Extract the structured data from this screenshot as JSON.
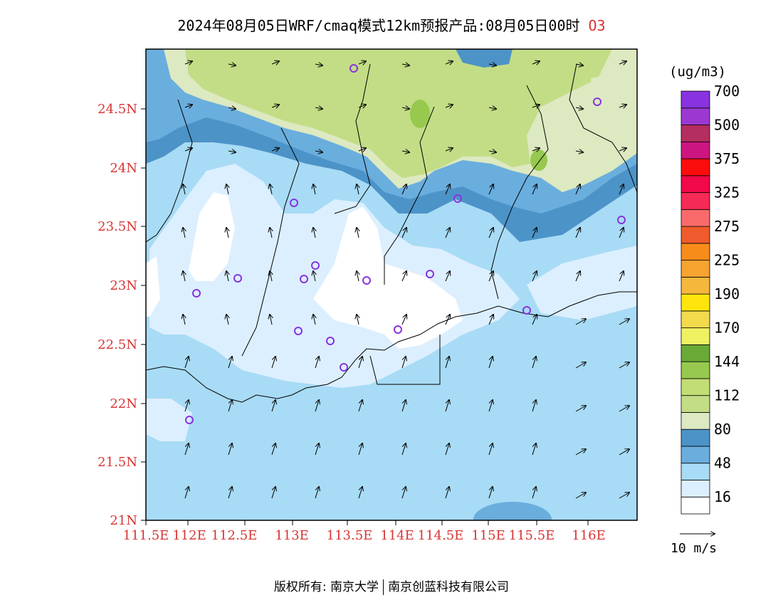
{
  "title": {
    "main": "2024年08月05日WRF/cmaq模式12km预报产品:08月05日00时",
    "pollutant": "O3"
  },
  "axes": {
    "lat_labels": [
      "24.5N",
      "24N",
      "23.5N",
      "23N",
      "22.5N",
      "22N",
      "21.5N",
      "21N"
    ],
    "lon_labels": [
      "111.5E",
      "112E",
      "112.5E",
      "113E",
      "113.5E",
      "114E",
      "114.5E",
      "115E",
      "115.5E",
      "116E"
    ]
  },
  "colorbar": {
    "unit": "(ug/m3)",
    "levels": [
      {
        "color": "#ffffff",
        "label": "16"
      },
      {
        "color": "#dcefff",
        "label": ""
      },
      {
        "color": "#a8dbf5",
        "label": "48"
      },
      {
        "color": "#6aaede",
        "label": ""
      },
      {
        "color": "#4c93c8",
        "label": "80"
      },
      {
        "color": "#dde9c1",
        "label": ""
      },
      {
        "color": "#c3dd86",
        "label": "112"
      },
      {
        "color": "#c3dd75",
        "label": ""
      },
      {
        "color": "#97c94f",
        "label": "144"
      },
      {
        "color": "#6aaa37",
        "label": ""
      },
      {
        "color": "#f0f063",
        "label": "170"
      },
      {
        "color": "#f3da4d",
        "label": ""
      },
      {
        "color": "#ffe50c",
        "label": "190"
      },
      {
        "color": "#f5b73c",
        "label": ""
      },
      {
        "color": "#f6a330",
        "label": "225"
      },
      {
        "color": "#f78c1a",
        "label": ""
      },
      {
        "color": "#ef5b2c",
        "label": "275"
      },
      {
        "color": "#f96b6b",
        "label": ""
      },
      {
        "color": "#f52a55",
        "label": "325"
      },
      {
        "color": "#f1094a",
        "label": ""
      },
      {
        "color": "#fb0d0d",
        "label": "375"
      },
      {
        "color": "#cd1581",
        "label": ""
      },
      {
        "color": "#b42e5f",
        "label": "500"
      },
      {
        "color": "#9b38d1",
        "label": ""
      },
      {
        "color": "#8833df",
        "label": "700"
      }
    ]
  },
  "wind_legend": {
    "label": "10 m/s"
  },
  "copyright": {
    "left": "版权所有: 南京大学",
    "right": "南京创蓝科技有限公司"
  }
}
